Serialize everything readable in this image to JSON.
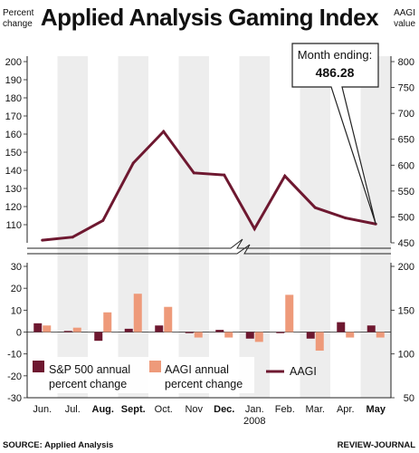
{
  "title": "Applied Analysis Gaming Index",
  "left_axis_caption": [
    "Percent",
    "change"
  ],
  "right_axis_caption": [
    "AAGI",
    "value"
  ],
  "callout": {
    "label": "Month ending:",
    "value": "486.28"
  },
  "source": "SOURCE: Applied Analysis",
  "credit": "REVIEW-JOURNAL",
  "colors": {
    "sp500": "#6e1830",
    "aagi_change": "#ee9a7a",
    "aagi_line": "#6e1830",
    "stripe": "#ededed"
  },
  "chart_data": [
    {
      "type": "line",
      "panel": "top",
      "categories": [
        "Jun.",
        "Jul.",
        "Aug.",
        "Sept.",
        "Oct.",
        "Nov",
        "Dec.",
        "Jan.",
        "Feb.",
        "Mar.",
        "Apr.",
        "May"
      ],
      "category_sublabels": [
        "",
        "",
        "",
        "",
        "",
        "",
        "",
        "2008",
        "",
        "",
        "",
        ""
      ],
      "series": [
        {
          "name": "AAGI",
          "values": [
            455,
            461,
            493,
            604,
            665,
            585,
            581,
            477,
            579,
            518,
            498,
            486.28
          ]
        }
      ],
      "ylim": [
        450,
        800
      ],
      "yticks": [
        450,
        500,
        550,
        600,
        650,
        700,
        750,
        800
      ],
      "left_ylim": [
        100,
        200
      ],
      "left_yticks": [
        110,
        120,
        130,
        140,
        150,
        160,
        170,
        180,
        190,
        200
      ]
    },
    {
      "type": "bar",
      "panel": "bottom",
      "categories": [
        "Jun.",
        "Jul.",
        "Aug.",
        "Sept.",
        "Oct.",
        "Nov",
        "Dec.",
        "Jan.",
        "Feb.",
        "Mar.",
        "Apr.",
        "May"
      ],
      "series": [
        {
          "name": "S&P 500 annual percent change",
          "values": [
            4,
            0.5,
            -4,
            1.5,
            3,
            -0.5,
            1,
            -3,
            -0.5,
            -3,
            4.5,
            3
          ]
        },
        {
          "name": "AAGI annual percent change",
          "values": [
            3,
            2,
            9,
            17.5,
            11.5,
            -2.5,
            -2.5,
            -4.5,
            17,
            -8.5,
            -2.5,
            -2.5
          ]
        }
      ],
      "ylim": [
        -30,
        30
      ],
      "yticks": [
        -30,
        -20,
        -10,
        0,
        10,
        20,
        30
      ],
      "right_ylim": [
        50,
        200
      ],
      "right_yticks": [
        50,
        100,
        150,
        200
      ]
    }
  ],
  "legend": [
    {
      "label_line1": "S&P 500 annual",
      "label_line2": "percent change",
      "kind": "box",
      "color": "#6e1830"
    },
    {
      "label_line1": "AAGI annual",
      "label_line2": "percent change",
      "kind": "box",
      "color": "#ee9a7a"
    },
    {
      "label_line1": "AAGI",
      "label_line2": "",
      "kind": "line",
      "color": "#6e1830"
    }
  ]
}
